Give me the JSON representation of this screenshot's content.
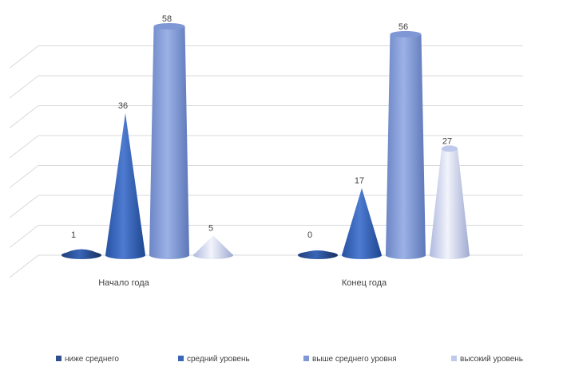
{
  "chart_data": {
    "type": "bar",
    "shape": "3d-cone",
    "categories": [
      "Начало года",
      "Конец года"
    ],
    "series": [
      {
        "name": "ниже среднего",
        "values": [
          1,
          0
        ],
        "color": "#2E5090"
      },
      {
        "name": "средний уровень",
        "values": [
          36,
          17
        ],
        "color": "#3A66B8"
      },
      {
        "name": "выше среднего уровня",
        "values": [
          58,
          56
        ],
        "color": "#7F97D4"
      },
      {
        "name": "высокий уровень",
        "values": [
          5,
          27
        ],
        "color": "#BFC9EA"
      }
    ],
    "grid": true,
    "legend": "bottom"
  }
}
